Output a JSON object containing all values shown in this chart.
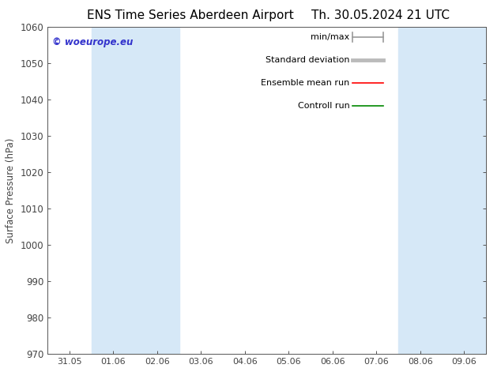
{
  "title_left": "ENS Time Series Aberdeen Airport",
  "title_right": "Th. 30.05.2024 21 UTC",
  "ylabel": "Surface Pressure (hPa)",
  "ylim": [
    970,
    1060
  ],
  "yticks": [
    970,
    980,
    990,
    1000,
    1010,
    1020,
    1030,
    1040,
    1050,
    1060
  ],
  "xlabels": [
    "31.05",
    "01.06",
    "02.06",
    "03.06",
    "04.06",
    "05.06",
    "06.06",
    "07.06",
    "08.06",
    "09.06"
  ],
  "band_color": "#d6e8f7",
  "watermark": "© woeurope.eu",
  "watermark_color": "#3333cc",
  "legend_labels": [
    "min/max",
    "Standard deviation",
    "Ensemble mean run",
    "Controll run"
  ],
  "legend_colors_line": [
    "#999999",
    "#bbbbbb",
    "#ff0000",
    "#008800"
  ],
  "bg_color": "#ffffff",
  "axes_color": "#444444",
  "tick_color": "#444444",
  "font_size": 9,
  "title_font_size": 11
}
